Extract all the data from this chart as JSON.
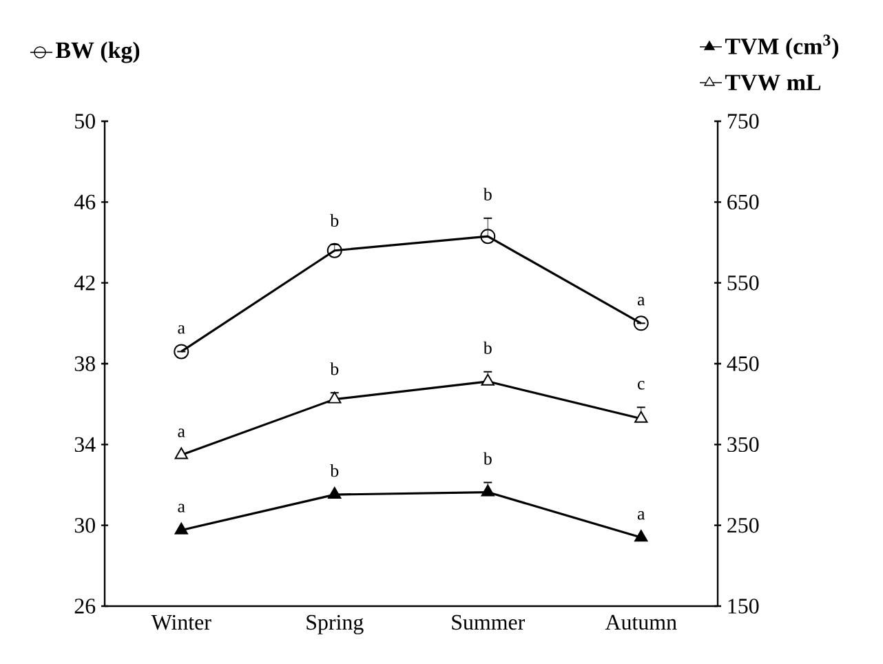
{
  "chart_data": {
    "type": "line",
    "categories": [
      "Winter",
      "Spring",
      "Summer",
      "Autumn"
    ],
    "series": [
      {
        "name": "BW (kg)",
        "color": "#000000",
        "marker": "circle",
        "colors": [
          "#ffffff",
          "#ffffff",
          "#ffffff",
          "#ffffff"
        ],
        "axis": "y",
        "values": [
          38.6,
          43.6,
          44.3,
          40.0
        ],
        "errors": [
          null,
          0.3,
          0.9,
          null
        ],
        "value_labels": [
          "a",
          "b",
          "b",
          "a"
        ]
      },
      {
        "name": "TVM (cm$^{3}$)",
        "color": "#000000",
        "marker": "triangle",
        "colors": [
          "#000000",
          "#000000",
          "#000000",
          "#000000"
        ],
        "axis": "y2",
        "values": [
          244,
          288,
          291,
          235
        ],
        "errors": [
          null,
          null,
          12,
          null
        ],
        "value_labels": [
          "a",
          "b",
          "b",
          "a"
        ]
      },
      {
        "name": "TVW mL",
        "color": "#000000",
        "marker": "triangle",
        "colors": [
          "#ffffff",
          "#ffffff",
          "#ffffff",
          "#ffffff"
        ],
        "axis": "y2",
        "values": [
          337,
          406,
          428,
          382
        ],
        "errors": [
          null,
          8,
          12,
          14
        ],
        "value_labels": [
          "a",
          "b",
          "b",
          "c"
        ]
      }
    ],
    "ylim": [
      26,
      50
    ],
    "yticks": [
      26,
      30,
      34,
      38,
      42,
      46,
      50
    ],
    "y2lim": [
      150,
      750
    ],
    "y2ticks": [
      150,
      250,
      350,
      450,
      550,
      650,
      750
    ],
    "legend": "top",
    "grid": false,
    "line_style": "solid"
  }
}
